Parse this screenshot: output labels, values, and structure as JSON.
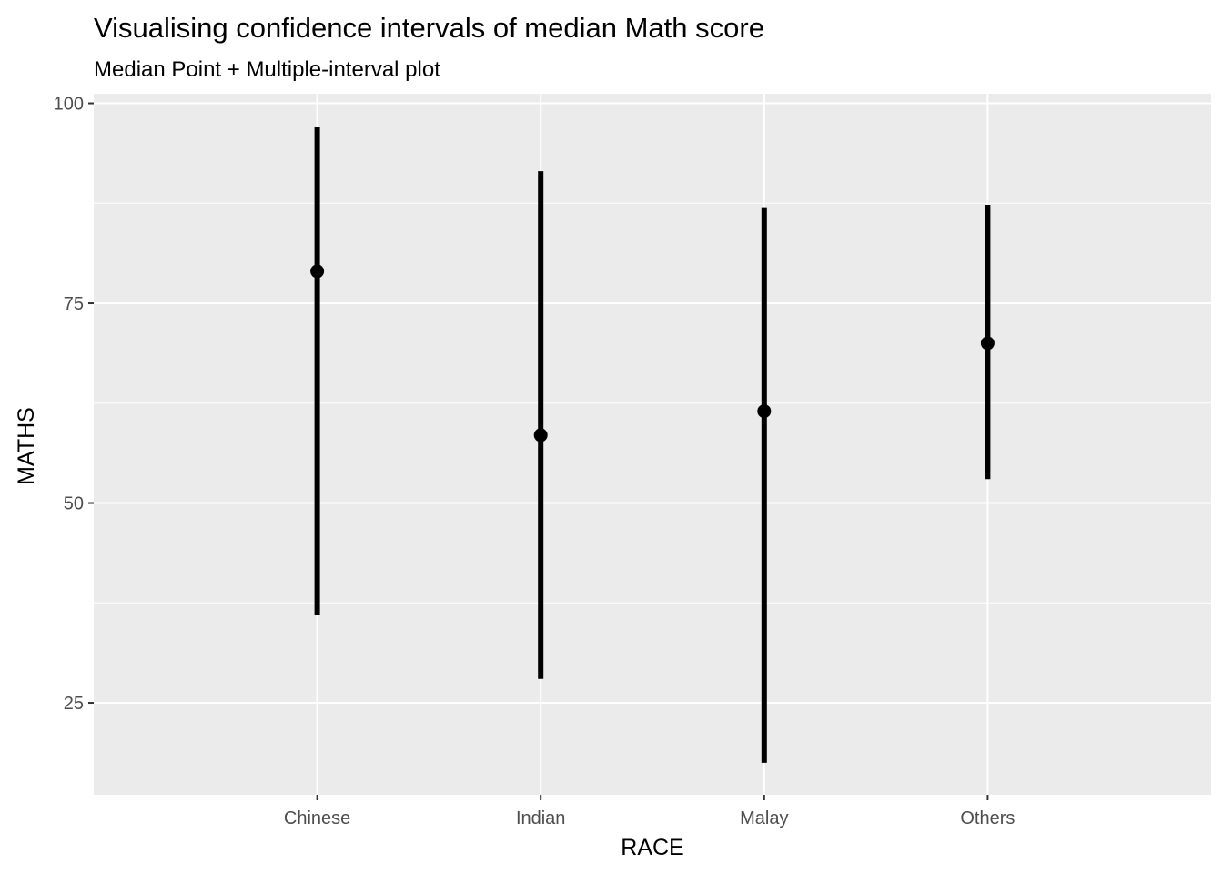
{
  "chart_data": {
    "type": "pointinterval",
    "title": "Visualising confidence intervals of median Math score",
    "subtitle": "Median Point + Multiple-interval plot",
    "xlabel": "RACE",
    "ylabel": "MATHS",
    "categories": [
      "Chinese",
      "Indian",
      "Malay",
      "Others"
    ],
    "medians": [
      79,
      58.5,
      61.5,
      70
    ],
    "lower": [
      36,
      28,
      17.5,
      53
    ],
    "upper": [
      97,
      91.5,
      87,
      87.3
    ],
    "ylim": [
      13.5,
      101.2
    ],
    "yticks": [
      25,
      50,
      75,
      100
    ],
    "ytick_labels": [
      "25",
      "50",
      "75",
      "100"
    ],
    "grid": true,
    "colors": {
      "panel": "#ebebeb",
      "grid": "#ffffff",
      "mark": "#000000"
    }
  }
}
